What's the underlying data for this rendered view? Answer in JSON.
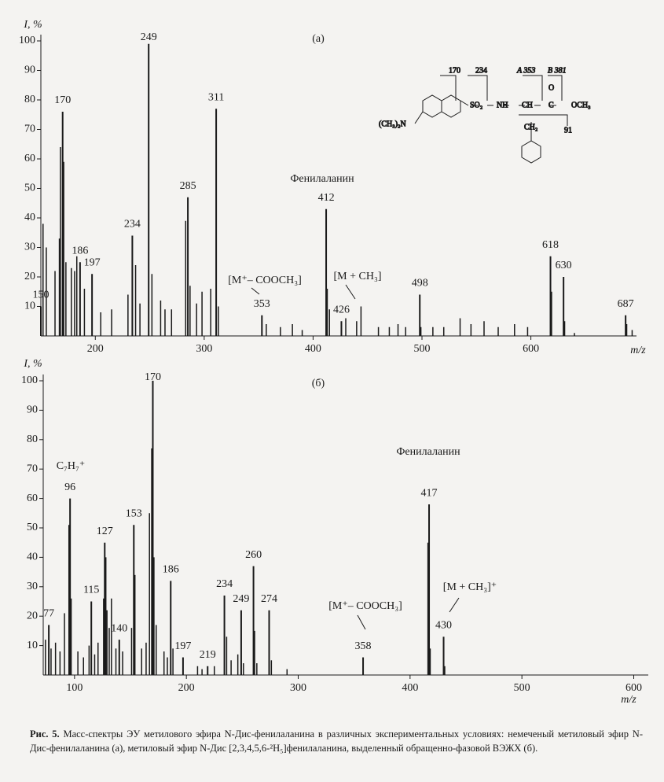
{
  "chart_data": [
    {
      "type": "spectrum",
      "title": "(а)",
      "ylabel": "I, %",
      "xlabel": "m/z",
      "color": "#1a1a1a",
      "annotations": [
        "Фенилаланин",
        "[M⁺– COOCH₃]",
        "[M + CH₃]"
      ],
      "x": [
        150,
        170,
        186,
        197,
        234,
        249,
        285,
        311,
        353,
        412,
        426,
        498,
        618,
        630,
        687
      ],
      "values": [
        10,
        76,
        25,
        21,
        34,
        99,
        47,
        77,
        7,
        43,
        5,
        14,
        27,
        20,
        7
      ],
      "unlabeled_x": [
        152,
        155,
        163,
        167,
        168,
        171,
        173,
        178,
        181,
        183,
        190,
        205,
        215,
        230,
        237,
        241,
        252,
        260,
        264,
        270,
        283,
        287,
        293,
        298,
        306,
        313,
        357,
        370,
        381,
        390,
        413,
        415,
        430,
        440,
        444,
        460,
        470,
        478,
        485,
        499,
        510,
        520,
        535,
        545,
        557,
        570,
        585,
        597,
        619,
        631,
        640,
        688,
        693
      ],
      "unlabeled_values": [
        38,
        30,
        22,
        33,
        64,
        59,
        25,
        23,
        22,
        27,
        16,
        8,
        9,
        14,
        24,
        11,
        21,
        12,
        9,
        9,
        39,
        17,
        11,
        15,
        16,
        10,
        4,
        3,
        4,
        2,
        16,
        9,
        6,
        5,
        10,
        3,
        3,
        4,
        3,
        3,
        3,
        3,
        6,
        4,
        5,
        3,
        4,
        3,
        15,
        5,
        1,
        4,
        2
      ],
      "xlim": [
        150,
        697
      ],
      "ylim": [
        0,
        100
      ],
      "xticks": [
        200,
        300,
        400,
        500,
        600
      ],
      "yticks": [
        10,
        20,
        30,
        40,
        50,
        60,
        70,
        80,
        90,
        100
      ]
    },
    {
      "type": "spectrum",
      "title": "(б)",
      "ylabel": "I, %",
      "xlabel": "m/z",
      "color": "#1a1a1a",
      "annotations": [
        "Фенилаланин",
        "C₇H₇⁺",
        "[M⁺– COOCH₃]",
        "[M + CH₃]⁺"
      ],
      "x": [
        77,
        96,
        115,
        127,
        140,
        153,
        170,
        186,
        197,
        219,
        234,
        249,
        260,
        274,
        358,
        417,
        430
      ],
      "values": [
        17,
        60,
        25,
        45,
        12,
        51,
        100,
        32,
        6,
        3,
        27,
        22,
        37,
        22,
        6,
        58,
        13
      ],
      "unlabeled_x": [
        74,
        79,
        83,
        87,
        91,
        95,
        97,
        103,
        108,
        113,
        118,
        121,
        126,
        128,
        129,
        131,
        133,
        137,
        143,
        151,
        154,
        160,
        164,
        167,
        169,
        171,
        173,
        180,
        183,
        188,
        210,
        214,
        225,
        236,
        240,
        246,
        251,
        261,
        263,
        276,
        290,
        416,
        418,
        431
      ],
      "unlabeled_values": [
        12,
        9,
        11,
        8,
        21,
        51,
        26,
        8,
        6,
        10,
        7,
        11,
        26,
        40,
        22,
        16,
        26,
        9,
        8,
        16,
        34,
        9,
        11,
        55,
        77,
        40,
        17,
        8,
        6,
        9,
        3,
        2,
        3,
        13,
        5,
        7,
        4,
        15,
        4,
        5,
        2,
        45,
        9,
        3
      ],
      "xlim": [
        72,
        613
      ],
      "ylim": [
        0,
        100
      ],
      "xticks": [
        100,
        200,
        300,
        400,
        500,
        600
      ],
      "yticks": [
        10,
        20,
        30,
        40,
        50,
        60,
        70,
        80,
        90,
        100
      ]
    }
  ],
  "structure": {
    "labels": [
      "170",
      "234",
      "A 353",
      "B 381",
      "91",
      "(CH₃)₂N",
      "SO₂",
      "NH",
      "CH",
      "C",
      "OCH₃",
      "CH₂",
      "O"
    ]
  },
  "caption": {
    "label": "Рис. 5.",
    "text": "Масс-спектры ЭУ метилового эфира N-Дис-фенилаланина в различных экспериментальных условиях: немеченый метиловый эфир N-Дис-фенилаланина (а), метиловый эфир N-Дис [2,3,4,5,6-²H₅]фенилаланина, выделенный обращенно-фазовой ВЭЖХ (б)."
  }
}
